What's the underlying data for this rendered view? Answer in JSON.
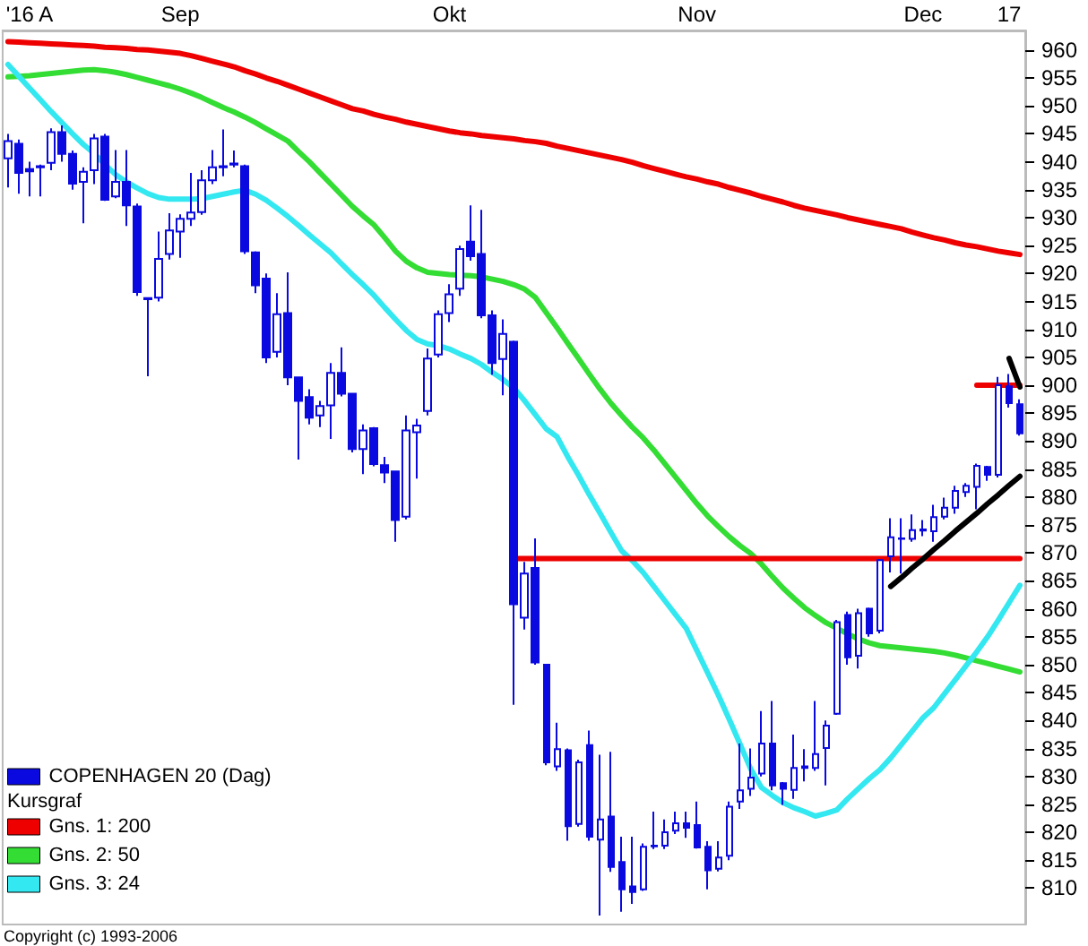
{
  "chart_data": {
    "type": "candlestick",
    "legend_title": "Kursgraf",
    "legend": "bottom left",
    "annotations": [
      "Copyright (c) 1993-2006"
    ],
    "categories": [
      null,
      null,
      "'16 A",
      null,
      null,
      null,
      null,
      null,
      null,
      null,
      null,
      null,
      null,
      null,
      null,
      null,
      "Sep",
      null,
      null,
      null,
      null,
      null,
      null,
      null,
      null,
      null,
      null,
      null,
      null,
      null,
      null,
      null,
      null,
      null,
      null,
      null,
      null,
      null,
      null,
      null,
      null,
      "Okt",
      null,
      null,
      null,
      null,
      null,
      null,
      null,
      null,
      null,
      null,
      null,
      null,
      null,
      null,
      null,
      null,
      null,
      null,
      null,
      null,
      null,
      null,
      "Nov",
      null,
      null,
      null,
      null,
      null,
      null,
      null,
      null,
      null,
      null,
      null,
      null,
      null,
      null,
      null,
      null,
      null,
      null,
      null,
      null,
      "Dec",
      null,
      null,
      null,
      null,
      null,
      null,
      null,
      "17",
      null
    ],
    "ylim": [
      803.5,
      963.5
    ],
    "yticks": [
      810,
      815,
      820,
      825,
      830,
      835,
      840,
      845,
      850,
      855,
      860,
      865,
      870,
      875,
      880,
      885,
      890,
      895,
      900,
      905,
      910,
      915,
      920,
      925,
      930,
      935,
      940,
      945,
      950,
      955,
      960
    ],
    "series": [
      {
        "type": "candlestick",
        "name": "COPENHAGEN 20 (Dag)",
        "color": "#0a0ae0",
        "ohlc": [
          [
            940.6,
            945,
            935.4,
            943.7
          ],
          [
            943.2,
            944,
            934.3,
            938
          ],
          [
            938.7,
            940,
            933.8,
            938.3
          ],
          [
            939,
            939.5,
            933.8,
            939.2
          ],
          [
            939.8,
            946,
            938.5,
            945.3
          ],
          [
            945.3,
            946.5,
            940,
            941.4
          ],
          [
            941.4,
            942,
            935,
            936.1
          ],
          [
            936.4,
            939,
            929,
            938.2
          ],
          [
            938.5,
            945,
            936,
            944.2
          ],
          [
            944.5,
            945,
            933,
            933.2
          ],
          [
            933.8,
            942.1,
            933.5,
            936.4
          ],
          [
            936.4,
            942.1,
            928.5,
            932.2
          ],
          [
            932,
            932.5,
            916,
            916.7
          ],
          [
            915.6,
            915.6,
            901.6,
            915.4
          ],
          [
            915.7,
            927.5,
            915,
            922.6
          ],
          [
            923.5,
            930.8,
            922.5,
            927.7
          ],
          [
            927.5,
            930.6,
            922.8,
            929.8
          ],
          [
            929.8,
            938,
            928.5,
            930.9
          ],
          [
            931,
            938.5,
            930.5,
            936.7
          ],
          [
            936.7,
            942.1,
            936,
            939
          ],
          [
            939,
            945.8,
            937.4,
            939.2
          ],
          [
            939.5,
            942,
            939,
            939.7
          ],
          [
            939.2,
            939.5,
            923.5,
            924
          ],
          [
            923.8,
            924,
            916.5,
            917.9
          ],
          [
            919.1,
            920,
            904,
            905
          ],
          [
            906,
            916.5,
            905,
            912.7
          ],
          [
            912.9,
            920.2,
            900,
            901.4
          ],
          [
            901.4,
            901.5,
            886.7,
            897.2
          ],
          [
            897.9,
            899.3,
            893,
            894.2
          ],
          [
            894.6,
            897.2,
            892.5,
            896.3
          ],
          [
            896.4,
            904,
            890.4,
            902.2
          ],
          [
            902.2,
            906.8,
            898,
            898.5
          ],
          [
            898.5,
            898.5,
            888,
            888.6
          ],
          [
            888.6,
            893,
            884.1,
            891.9
          ],
          [
            892.3,
            892.5,
            885.5,
            885.9
          ],
          [
            885.7,
            887.2,
            882.5,
            884.4
          ],
          [
            884.6,
            884.6,
            872,
            875.9
          ],
          [
            876.5,
            894.6,
            876,
            891.9
          ],
          [
            891.6,
            894,
            883.3,
            892.8
          ],
          [
            895.4,
            906.6,
            894.6,
            904.8
          ],
          [
            905.5,
            913.4,
            905,
            912.7
          ],
          [
            912.9,
            918.1,
            911.3,
            916.3
          ],
          [
            917.3,
            925,
            916,
            924.4
          ],
          [
            925.7,
            932.2,
            922.3,
            923.1
          ],
          [
            923.5,
            931.4,
            912,
            912.5
          ],
          [
            912.5,
            913.4,
            901.9,
            904
          ],
          [
            904.7,
            911.8,
            898.2,
            909.2
          ],
          [
            907.8,
            908,
            842.8,
            860.8
          ],
          [
            858.4,
            868.4,
            856.3,
            866.3
          ],
          [
            867.3,
            872.6,
            850,
            850.4
          ],
          [
            850,
            850.1,
            832,
            832.5
          ],
          [
            831.8,
            839.6,
            831,
            834.9
          ],
          [
            834.7,
            835,
            818.5,
            821.1
          ],
          [
            821.5,
            833,
            821,
            832.5
          ],
          [
            835.6,
            838.2,
            818.5,
            819.2
          ],
          [
            818.7,
            833.9,
            805.1,
            822.3
          ],
          [
            822.8,
            834.4,
            812.9,
            813.8
          ],
          [
            814.7,
            819.2,
            805.8,
            809.8
          ],
          [
            810.3,
            819.2,
            807.2,
            809.3
          ],
          [
            809.8,
            818,
            809.5,
            817.4
          ],
          [
            817.5,
            823.7,
            817,
            817.6
          ],
          [
            817.6,
            822.3,
            817,
            820
          ],
          [
            820.3,
            823.7,
            819.7,
            821.6
          ],
          [
            821.6,
            823.7,
            819,
            820.8
          ],
          [
            821.3,
            825.5,
            817.1,
            817.3
          ],
          [
            817.4,
            818.4,
            809.8,
            813.2
          ],
          [
            813.5,
            818.4,
            813,
            815.5
          ],
          [
            815.8,
            825.5,
            815,
            824.6
          ],
          [
            825.5,
            835.9,
            824.2,
            827.5
          ],
          [
            827.8,
            835,
            826.5,
            829.8
          ],
          [
            830.5,
            841.7,
            830,
            835.9
          ],
          [
            835.9,
            843.5,
            827.5,
            828.4
          ],
          [
            828.8,
            829,
            824.9,
            827.8
          ],
          [
            827.6,
            837.5,
            826,
            831.5
          ],
          [
            831.5,
            834.9,
            829.1,
            831.8
          ],
          [
            831.5,
            843.5,
            831,
            834
          ],
          [
            835.1,
            840,
            828.4,
            839.1
          ],
          [
            841.2,
            858,
            841,
            857.6
          ],
          [
            858.9,
            859.5,
            850,
            851.3
          ],
          [
            851.6,
            860,
            849.3,
            859.2
          ],
          [
            860,
            860.2,
            855,
            855.6
          ],
          [
            856.1,
            868.9,
            855.6,
            868.7
          ],
          [
            869.4,
            876.2,
            866.5,
            872.8
          ],
          [
            872.5,
            876.2,
            866.3,
            872.6
          ],
          [
            872.5,
            876.9,
            872,
            874.1
          ],
          [
            874,
            875.9,
            873,
            874.2
          ],
          [
            873.9,
            878.6,
            872,
            876.4
          ],
          [
            876.5,
            879.9,
            876,
            878.1
          ],
          [
            878.1,
            882,
            877,
            881.1
          ],
          [
            880.9,
            882.5,
            880,
            882
          ],
          [
            881.8,
            886,
            877.8,
            885.6
          ],
          [
            885.4,
            885.6,
            882.9,
            884
          ],
          [
            884,
            901.5,
            883.5,
            900
          ],
          [
            899.8,
            902,
            896,
            896.8
          ],
          [
            896.6,
            897.5,
            891,
            891.4
          ]
        ]
      },
      {
        "type": "line",
        "name": "Gns. 1: 200",
        "color": "#ee0000",
        "values": [
          961.5,
          961.4,
          961.3,
          961.2,
          961.1,
          961,
          960.9,
          960.8,
          960.7,
          960.5,
          960.4,
          960.3,
          960.1,
          960,
          959.8,
          959.6,
          959.4,
          959,
          958.5,
          958,
          957.5,
          957,
          956.3,
          955.7,
          955,
          954.4,
          953.7,
          953,
          952.3,
          951.6,
          950.9,
          950.2,
          949.5,
          949.1,
          948.5,
          948,
          947.6,
          947.1,
          946.7,
          946.3,
          945.9,
          945.5,
          945.2,
          945,
          944.7,
          944.5,
          944.3,
          944.1,
          943.8,
          943.6,
          943.3,
          942.8,
          942.4,
          942,
          941.6,
          941.2,
          940.8,
          940.4,
          939.9,
          939.3,
          938.8,
          938.3,
          937.8,
          937.3,
          936.9,
          936.4,
          936,
          935.4,
          934.9,
          934.4,
          933.8,
          933.3,
          932.8,
          932.2,
          931.7,
          931.3,
          930.9,
          930.5,
          930,
          929.6,
          929.2,
          928.8,
          928.4,
          928,
          927.4,
          926.9,
          926.4,
          926,
          925.5,
          925.1,
          924.8,
          924.4,
          924,
          923.7,
          923.4
        ]
      },
      {
        "type": "line",
        "name": "Gns. 2: 50",
        "color": "#33dd33",
        "values": [
          955.2,
          955.3,
          955.4,
          955.6,
          955.8,
          956,
          956.2,
          956.4,
          956.5,
          956.3,
          956,
          955.6,
          955.1,
          954.6,
          954.1,
          953.6,
          953,
          952.3,
          951.5,
          950.6,
          949.7,
          948.9,
          948,
          947,
          945.9,
          944.8,
          943.7,
          941.8,
          940,
          938,
          936,
          934,
          932,
          930.3,
          928.7,
          926.4,
          924,
          922.2,
          921,
          920.2,
          920,
          919.8,
          919.7,
          919.6,
          919.4,
          919,
          918.6,
          918,
          917.2,
          915.7,
          913,
          910.3,
          907.5,
          904.8,
          902,
          899.3,
          896.8,
          894.6,
          892.5,
          890.6,
          888.4,
          886,
          883.6,
          881.2,
          878.8,
          876.6,
          874.7,
          872.9,
          871.3,
          869.9,
          868,
          865.8,
          863.7,
          861.9,
          860.2,
          858.8,
          857.5,
          856.5,
          855.5,
          854.6,
          853.9,
          853.4,
          853.2,
          853,
          852.8,
          852.6,
          852.4,
          852.1,
          851.7,
          851.2,
          850.7,
          850.2,
          849.7,
          849.2,
          848.7
        ]
      },
      {
        "type": "line",
        "name": "Gns. 3: 24",
        "color": "#33e8f0",
        "values": [
          957.4,
          955.3,
          953.2,
          951.1,
          949,
          947,
          945,
          943.1,
          941.5,
          939.5,
          937.7,
          936.4,
          935.3,
          934.3,
          933.6,
          933.3,
          933.3,
          933.3,
          933.4,
          933.8,
          934.2,
          934.6,
          934.9,
          934.2,
          933.1,
          931.7,
          930.2,
          928.6,
          926.9,
          925.3,
          923.7,
          921.7,
          919.8,
          918,
          916.1,
          913.9,
          911.8,
          909.8,
          908.2,
          907.4,
          907.1,
          906.5,
          905.6,
          904.8,
          903.7,
          902.3,
          901,
          899.5,
          897.2,
          894.7,
          892.2,
          890.8,
          887.2,
          883.9,
          880.4,
          877.1,
          873.7,
          870.4,
          868.6,
          866.5,
          864,
          861.5,
          859,
          856.5,
          852.5,
          848.5,
          844.5,
          840.2,
          835.8,
          831.3,
          828,
          826.6,
          825.3,
          824.4,
          823.7,
          822.9,
          823.4,
          824,
          826,
          827.8,
          829.6,
          831.2,
          833.3,
          835.7,
          838.1,
          840.5,
          842.3,
          844.8,
          847.3,
          849.8,
          852.3,
          855,
          858,
          861.1,
          864.2
        ]
      },
      {
        "type": "line",
        "color": "#ee0000",
        "values": [
          null,
          null,
          null,
          null,
          null,
          null,
          null,
          null,
          null,
          null,
          null,
          null,
          null,
          null,
          null,
          null,
          null,
          null,
          null,
          null,
          null,
          null,
          null,
          null,
          null,
          null,
          null,
          null,
          null,
          null,
          null,
          null,
          null,
          null,
          null,
          null,
          null,
          null,
          null,
          null,
          null,
          null,
          null,
          null,
          null,
          null,
          null,
          869,
          869,
          869,
          869,
          869,
          869,
          869,
          869,
          869,
          869,
          869,
          869,
          869,
          869,
          869,
          869,
          869,
          869,
          869,
          869,
          869,
          869,
          869,
          869,
          869,
          869,
          869,
          869,
          869,
          869,
          869,
          869,
          869,
          869,
          869,
          869,
          869,
          869,
          869,
          869,
          869,
          869,
          869,
          869,
          869,
          869,
          869,
          869
        ]
      },
      {
        "type": "line",
        "color": "#ee0000",
        "values": [
          null,
          null,
          null,
          null,
          null,
          null,
          null,
          null,
          null,
          null,
          null,
          null,
          null,
          null,
          null,
          null,
          null,
          null,
          null,
          null,
          null,
          null,
          null,
          null,
          null,
          null,
          null,
          null,
          null,
          null,
          null,
          null,
          null,
          null,
          null,
          null,
          null,
          null,
          null,
          null,
          null,
          null,
          null,
          null,
          null,
          null,
          null,
          null,
          null,
          null,
          null,
          null,
          null,
          null,
          null,
          null,
          null,
          null,
          null,
          null,
          null,
          null,
          null,
          null,
          null,
          null,
          null,
          null,
          null,
          null,
          null,
          null,
          null,
          null,
          null,
          null,
          null,
          null,
          null,
          null,
          null,
          null,
          null,
          null,
          null,
          null,
          null,
          null,
          null,
          null,
          900,
          900,
          900,
          900,
          900
        ]
      },
      {
        "type": "line",
        "color": "#000000",
        "values": [
          null,
          null,
          null,
          null,
          null,
          null,
          null,
          null,
          null,
          null,
          null,
          null,
          null,
          null,
          null,
          null,
          null,
          null,
          null,
          null,
          null,
          null,
          null,
          null,
          null,
          null,
          null,
          null,
          null,
          null,
          null,
          null,
          null,
          null,
          null,
          null,
          null,
          null,
          null,
          null,
          null,
          null,
          null,
          null,
          null,
          null,
          null,
          null,
          null,
          null,
          null,
          null,
          null,
          null,
          null,
          null,
          null,
          null,
          null,
          null,
          null,
          null,
          null,
          null,
          null,
          null,
          null,
          null,
          null,
          null,
          null,
          null,
          null,
          null,
          null,
          null,
          null,
          null,
          null,
          null,
          null,
          null,
          864,
          865.6,
          867.3,
          868.9,
          870.6,
          872.2,
          873.9,
          875.5,
          877.1,
          878.8,
          880.4,
          882.1,
          883.7
        ]
      },
      {
        "type": "line",
        "color": "#000000",
        "values": [
          null,
          null,
          null,
          null,
          null,
          null,
          null,
          null,
          null,
          null,
          null,
          null,
          null,
          null,
          null,
          null,
          null,
          null,
          null,
          null,
          null,
          null,
          null,
          null,
          null,
          null,
          null,
          null,
          null,
          null,
          null,
          null,
          null,
          null,
          null,
          null,
          null,
          null,
          null,
          null,
          null,
          null,
          null,
          null,
          null,
          null,
          null,
          null,
          null,
          null,
          null,
          null,
          null,
          null,
          null,
          null,
          null,
          null,
          null,
          null,
          null,
          null,
          null,
          null,
          null,
          null,
          null,
          null,
          null,
          null,
          null,
          null,
          null,
          null,
          null,
          null,
          null,
          null,
          null,
          null,
          null,
          null,
          null,
          null,
          null,
          null,
          null,
          null,
          null,
          null,
          null,
          null,
          null,
          904.8,
          899.7
        ]
      }
    ]
  }
}
